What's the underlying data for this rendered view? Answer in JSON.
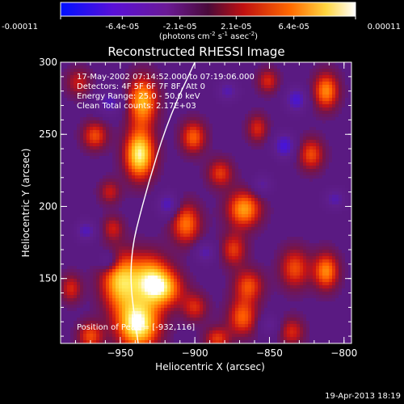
{
  "colorbar": {
    "tick_labels": [
      "-0.00011",
      "-6.4e-05",
      "-2.1e-05",
      "2.1e-05",
      "6.4e-05",
      "0.00011"
    ],
    "tick_values": [
      -0.00011,
      -6.4e-05,
      -2.1e-05,
      2.1e-05,
      6.4e-05,
      0.00011
    ],
    "range": [
      -0.00011,
      0.00011
    ],
    "units_prefix": "(photons cm",
    "units_exp1": "-2",
    "units_mid": " s",
    "units_exp2": "-1",
    "units_mid2": " asec",
    "units_exp3": "-2",
    "units_suffix": ")"
  },
  "chart_data": {
    "type": "heatmap",
    "title": "Reconstructed RHESSI Image",
    "xlabel": "Heliocentric X (arcsec)",
    "ylabel": "Heliocentric Y (arcsec)",
    "xlim": [
      -990,
      -795
    ],
    "ylim": [
      105,
      300
    ],
    "x_ticks": [
      -950,
      -900,
      -850,
      -800
    ],
    "x_tick_labels": [
      "−950",
      "−900",
      "−850",
      "−800"
    ],
    "y_ticks": [
      150,
      200,
      250,
      300
    ],
    "y_tick_labels": [
      "150",
      "200",
      "250",
      "300"
    ],
    "grid": false,
    "colormap": "blue-purple-red-yellow-white",
    "info_lines": [
      "17-May-2002 07:14:52.000 to 07:19:06.000",
      "Detectors: 4F 5F 6F 7F 8F, Att 0",
      "Energy Range: 25.0 - 50.0 keV",
      "Clean     Total counts: 2.17E+03"
    ],
    "position_label": "Position of Peak = [-932,116]",
    "peak": [
      -932,
      116
    ],
    "limb_curve": [
      [
        -938,
        105
      ],
      [
        -945,
        160
      ],
      [
        -933,
        210
      ],
      [
        -918,
        260
      ],
      [
        -900,
        300
      ]
    ],
    "sources": [
      {
        "x": -938,
        "y": 118,
        "intensity": 1.0,
        "sx": 10,
        "sy": 12
      },
      {
        "x": -950,
        "y": 148,
        "intensity": 0.8,
        "sx": 9,
        "sy": 14
      },
      {
        "x": -937,
        "y": 236,
        "intensity": 0.95,
        "sx": 7,
        "sy": 12
      },
      {
        "x": -935,
        "y": 273,
        "intensity": 0.75,
        "sx": 7,
        "sy": 12
      },
      {
        "x": -930,
        "y": 150,
        "intensity": 0.7,
        "sx": 9,
        "sy": 12
      },
      {
        "x": -906,
        "y": 188,
        "intensity": 0.6,
        "sx": 7,
        "sy": 10
      },
      {
        "x": -920,
        "y": 143,
        "intensity": 0.6,
        "sx": 9,
        "sy": 9
      },
      {
        "x": -867,
        "y": 198,
        "intensity": 0.7,
        "sx": 8,
        "sy": 9
      },
      {
        "x": -874,
        "y": 170,
        "intensity": 0.45,
        "sx": 6,
        "sy": 8
      },
      {
        "x": -868,
        "y": 123,
        "intensity": 0.55,
        "sx": 7,
        "sy": 9
      },
      {
        "x": -864,
        "y": 145,
        "intensity": 0.5,
        "sx": 7,
        "sy": 8
      },
      {
        "x": -833,
        "y": 157,
        "intensity": 0.5,
        "sx": 7,
        "sy": 10
      },
      {
        "x": -812,
        "y": 155,
        "intensity": 0.65,
        "sx": 6,
        "sy": 9
      },
      {
        "x": -812,
        "y": 280,
        "intensity": 0.65,
        "sx": 6,
        "sy": 9
      },
      {
        "x": -822,
        "y": 236,
        "intensity": 0.5,
        "sx": 6,
        "sy": 8
      },
      {
        "x": -967,
        "y": 249,
        "intensity": 0.5,
        "sx": 6,
        "sy": 7
      },
      {
        "x": -901,
        "y": 248,
        "intensity": 0.55,
        "sx": 6,
        "sy": 8
      },
      {
        "x": -883,
        "y": 223,
        "intensity": 0.45,
        "sx": 6,
        "sy": 7
      },
      {
        "x": -858,
        "y": 254,
        "intensity": 0.4,
        "sx": 5,
        "sy": 7
      },
      {
        "x": -851,
        "y": 287,
        "intensity": 0.4,
        "sx": 5,
        "sy": 6
      },
      {
        "x": -983,
        "y": 143,
        "intensity": 0.4,
        "sx": 5,
        "sy": 7
      },
      {
        "x": -978,
        "y": 286,
        "intensity": 0.35,
        "sx": 6,
        "sy": 7
      },
      {
        "x": -957,
        "y": 210,
        "intensity": 0.35,
        "sx": 5,
        "sy": 6
      },
      {
        "x": -900,
        "y": 130,
        "intensity": 0.4,
        "sx": 6,
        "sy": 7
      },
      {
        "x": -835,
        "y": 113,
        "intensity": 0.4,
        "sx": 6,
        "sy": 7
      },
      {
        "x": -970,
        "y": 110,
        "intensity": 0.5,
        "sx": 6,
        "sy": 7
      },
      {
        "x": -885,
        "y": 108,
        "intensity": 0.45,
        "sx": 6,
        "sy": 6
      },
      {
        "x": -955,
        "y": 185,
        "intensity": 0.35,
        "sx": 5,
        "sy": 6
      },
      {
        "x": -957,
        "y": 272,
        "intensity": -0.45,
        "sx": 6,
        "sy": 6
      },
      {
        "x": -918,
        "y": 201,
        "intensity": -0.5,
        "sx": 5,
        "sy": 6
      },
      {
        "x": -840,
        "y": 242,
        "intensity": -0.6,
        "sx": 5,
        "sy": 6
      },
      {
        "x": -832,
        "y": 274,
        "intensity": -0.55,
        "sx": 5,
        "sy": 6
      },
      {
        "x": -973,
        "y": 183,
        "intensity": -0.45,
        "sx": 5,
        "sy": 5
      },
      {
        "x": -958,
        "y": 162,
        "intensity": -0.4,
        "sx": 5,
        "sy": 5
      },
      {
        "x": -893,
        "y": 168,
        "intensity": -0.4,
        "sx": 5,
        "sy": 5
      },
      {
        "x": -878,
        "y": 280,
        "intensity": -0.4,
        "sx": 5,
        "sy": 5
      },
      {
        "x": -855,
        "y": 215,
        "intensity": -0.35,
        "sx": 5,
        "sy": 5
      },
      {
        "x": -806,
        "y": 205,
        "intensity": -0.4,
        "sx": 5,
        "sy": 5
      },
      {
        "x": -850,
        "y": 118,
        "intensity": -0.3,
        "sx": 5,
        "sy": 5
      }
    ]
  },
  "footer": {
    "timestamp": "19-Apr-2013 18:19"
  }
}
